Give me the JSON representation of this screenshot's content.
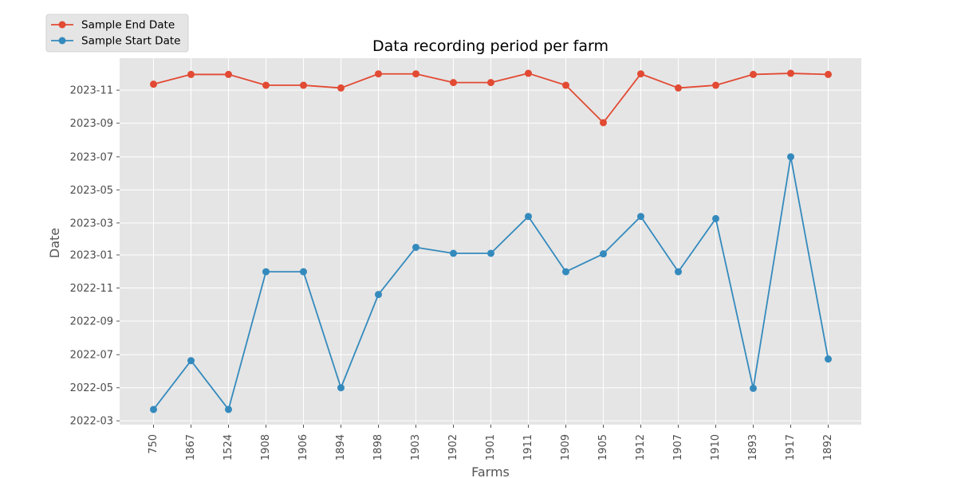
{
  "chart_data": {
    "type": "line",
    "title": "Data recording period per farm",
    "xlabel": "Farms",
    "ylabel": "Date",
    "categories": [
      "750",
      "1867",
      "1524",
      "1908",
      "1906",
      "1894",
      "1898",
      "1903",
      "1902",
      "1901",
      "1911",
      "1909",
      "1905",
      "1912",
      "1907",
      "1910",
      "1893",
      "1917",
      "1892"
    ],
    "series": [
      {
        "name": "Sample End Date",
        "color": "#E24A33",
        "values": [
          "2023-11-12",
          "2023-11-30",
          "2023-11-30",
          "2023-11-10",
          "2023-11-10",
          "2023-11-05",
          "2023-12-01",
          "2023-12-01",
          "2023-11-15",
          "2023-11-15",
          "2023-12-02",
          "2023-11-10",
          "2023-09-02",
          "2023-12-01",
          "2023-11-05",
          "2023-11-10",
          "2023-11-30",
          "2023-12-02",
          "2023-11-30"
        ]
      },
      {
        "name": "Sample Start Date",
        "color": "#348ABD",
        "values": [
          "2022-03-22",
          "2022-06-20",
          "2022-03-22",
          "2022-12-01",
          "2022-12-01",
          "2022-05-01",
          "2022-10-20",
          "2023-01-15",
          "2023-01-04",
          "2023-01-04",
          "2023-03-13",
          "2022-12-01",
          "2023-01-03",
          "2023-03-13",
          "2022-12-01",
          "2023-03-09",
          "2022-04-30",
          "2023-07-01",
          "2022-06-23"
        ]
      }
    ],
    "yticks": [
      "2022-03",
      "2022-05",
      "2022-07",
      "2022-09",
      "2022-11",
      "2023-01",
      "2023-03",
      "2023-05",
      "2023-07",
      "2023-09",
      "2023-11"
    ],
    "ylim": [
      "2022-02-22",
      "2023-12-30"
    ],
    "grid": true,
    "legend_position": "upper-left-outside"
  }
}
